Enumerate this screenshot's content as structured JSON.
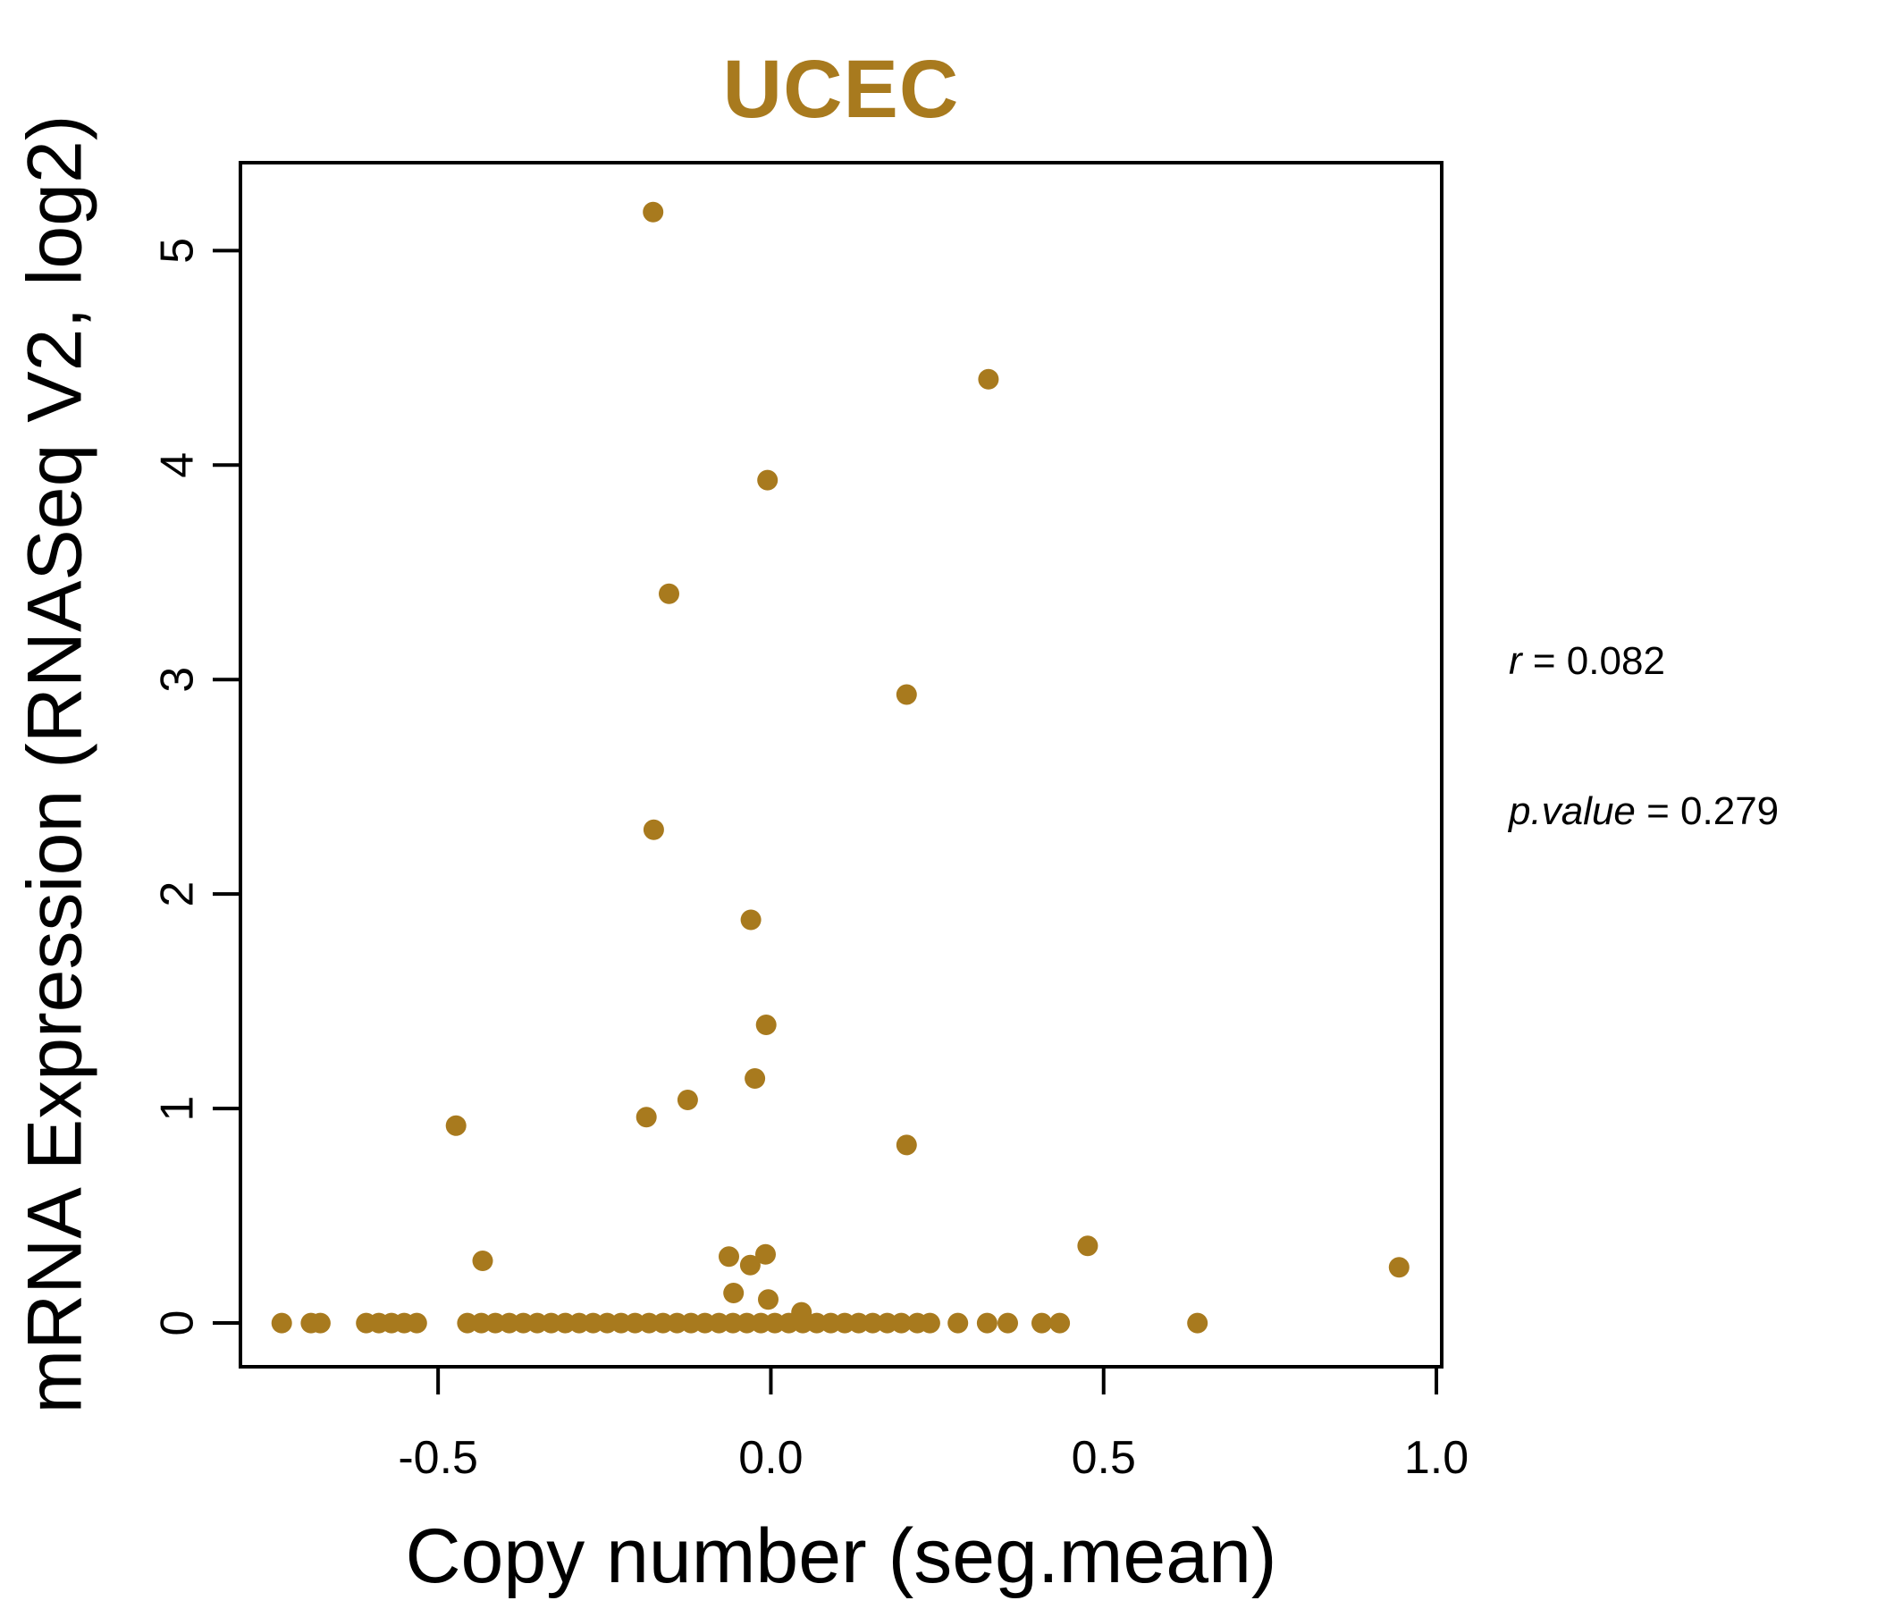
{
  "chart_data": {
    "type": "scatter",
    "title": "UCEC",
    "xlabel": "Copy number (seg.mean)",
    "ylabel": "mRNA Expression (RNASeq V2, log2)",
    "xlim": [
      -0.797,
      1.008
    ],
    "ylim": [
      -0.204,
      5.41
    ],
    "grid": false,
    "legend": "none",
    "x_ticks": [
      {
        "value": -0.5,
        "label": "-0.5"
      },
      {
        "value": 0.0,
        "label": "0.0"
      },
      {
        "value": 0.5,
        "label": "0.5"
      },
      {
        "value": 1.0,
        "label": "1.0"
      }
    ],
    "y_ticks": [
      {
        "value": 0,
        "label": "0"
      },
      {
        "value": 1,
        "label": "1"
      },
      {
        "value": 2,
        "label": "2"
      },
      {
        "value": 3,
        "label": "3"
      },
      {
        "value": 4,
        "label": "4"
      },
      {
        "value": 5,
        "label": "5"
      }
    ],
    "annotation": {
      "r": 0.082,
      "p_value": 0.279,
      "r_label": "r",
      "r_text": " = 0.082",
      "p_label": "p.value",
      "p_text": " = 0.279"
    },
    "colors": {
      "points": "#A87A1E",
      "title": "#A87A1E",
      "axis": "#000000"
    },
    "point_radius": 11.5,
    "points": [
      [
        -0.177,
        5.18
      ],
      [
        0.327,
        4.4
      ],
      [
        -0.005,
        3.93
      ],
      [
        -0.153,
        3.4
      ],
      [
        0.204,
        2.93
      ],
      [
        -0.176,
        2.3
      ],
      [
        -0.03,
        1.88
      ],
      [
        -0.007,
        1.39
      ],
      [
        -0.024,
        1.14
      ],
      [
        -0.125,
        1.04
      ],
      [
        -0.187,
        0.96
      ],
      [
        -0.473,
        0.92
      ],
      [
        0.204,
        0.83
      ],
      [
        0.476,
        0.36
      ],
      [
        -0.433,
        0.29
      ],
      [
        -0.063,
        0.31
      ],
      [
        -0.031,
        0.27
      ],
      [
        -0.008,
        0.32
      ],
      [
        -0.056,
        0.14
      ],
      [
        -0.004,
        0.11
      ],
      [
        0.046,
        0.05
      ],
      [
        0.944,
        0.26
      ],
      [
        -0.735,
        0
      ],
      [
        -0.691,
        0
      ],
      [
        -0.677,
        0
      ],
      [
        -0.608,
        0
      ],
      [
        -0.589,
        0
      ],
      [
        -0.57,
        0
      ],
      [
        -0.551,
        0
      ],
      [
        -0.532,
        0
      ],
      [
        -0.456,
        0
      ],
      [
        -0.435,
        0
      ],
      [
        -0.414,
        0
      ],
      [
        -0.393,
        0
      ],
      [
        -0.372,
        0
      ],
      [
        -0.351,
        0
      ],
      [
        -0.33,
        0
      ],
      [
        -0.309,
        0
      ],
      [
        -0.288,
        0
      ],
      [
        -0.267,
        0
      ],
      [
        -0.246,
        0
      ],
      [
        -0.225,
        0
      ],
      [
        -0.204,
        0
      ],
      [
        -0.183,
        0
      ],
      [
        -0.162,
        0
      ],
      [
        -0.141,
        0
      ],
      [
        -0.12,
        0
      ],
      [
        -0.099,
        0
      ],
      [
        -0.078,
        0
      ],
      [
        -0.057,
        0
      ],
      [
        -0.036,
        0
      ],
      [
        -0.015,
        0
      ],
      [
        0.006,
        0
      ],
      [
        0.027,
        0
      ],
      [
        0.048,
        0
      ],
      [
        0.069,
        0
      ],
      [
        0.09,
        0
      ],
      [
        0.111,
        0
      ],
      [
        0.132,
        0
      ],
      [
        0.153,
        0
      ],
      [
        0.175,
        0
      ],
      [
        0.196,
        0
      ],
      [
        0.22,
        0
      ],
      [
        0.239,
        0
      ],
      [
        0.281,
        0
      ],
      [
        0.325,
        0
      ],
      [
        0.356,
        0
      ],
      [
        0.407,
        0
      ],
      [
        0.434,
        0
      ],
      [
        0.641,
        0
      ]
    ]
  }
}
